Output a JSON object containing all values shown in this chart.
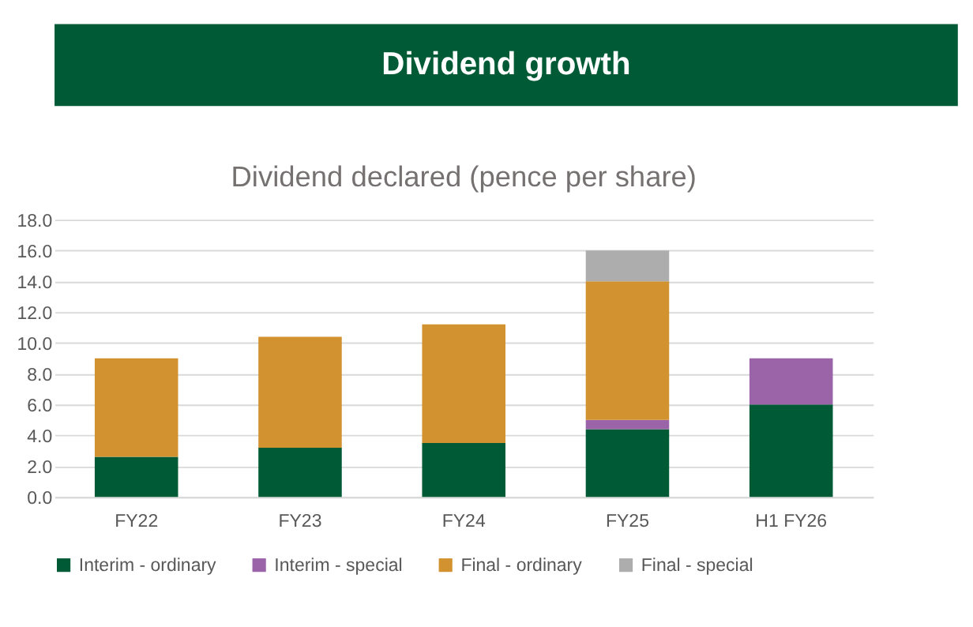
{
  "chart_data": {
    "type": "bar",
    "title": "Dividend growth",
    "subtitle": "Dividend declared (pence per share)",
    "categories": [
      "FY22",
      "FY23",
      "FY24",
      "FY25",
      "H1 FY26"
    ],
    "stacked": true,
    "series": [
      {
        "name": "Interim - ordinary",
        "color": "#005a36",
        "values": [
          2.6,
          3.2,
          3.5,
          4.4,
          6.0
        ]
      },
      {
        "name": "Interim - special",
        "color": "#9b63a8",
        "values": [
          null,
          null,
          null,
          0.6,
          3.0
        ]
      },
      {
        "name": "Final - ordinary",
        "color": "#d1922f",
        "values": [
          6.4,
          7.2,
          7.7,
          9.0,
          null
        ]
      },
      {
        "name": "Final - special",
        "color": "#adadad",
        "values": [
          null,
          null,
          null,
          2.0,
          null
        ]
      }
    ],
    "ylim": [
      0,
      18
    ],
    "yticks": [
      {
        "value": 0,
        "label": "0.0"
      },
      {
        "value": 2,
        "label": "2.0"
      },
      {
        "value": 4,
        "label": "4.0"
      },
      {
        "value": 6,
        "label": "6.0"
      },
      {
        "value": 8,
        "label": "8.0"
      },
      {
        "value": 10,
        "label": "10.0"
      },
      {
        "value": 12,
        "label": "12.0"
      },
      {
        "value": 14,
        "label": "14.0"
      },
      {
        "value": 16,
        "label": "16.0"
      },
      {
        "value": 18,
        "label": "18.0"
      }
    ],
    "grid": "y",
    "legend": "bottom"
  }
}
